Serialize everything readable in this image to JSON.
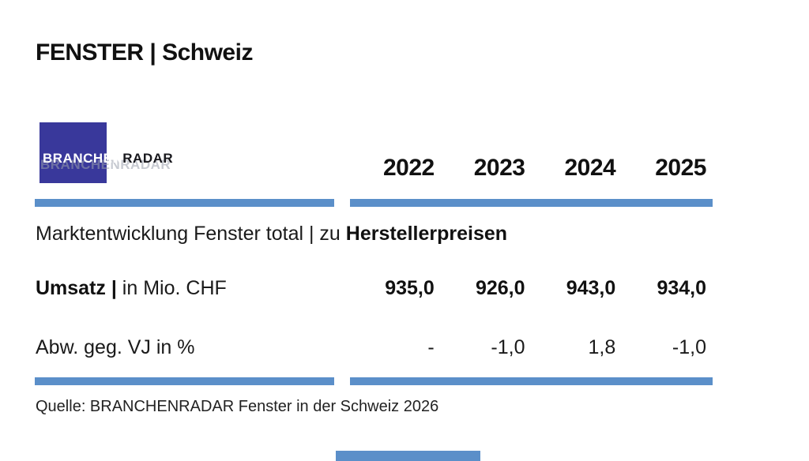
{
  "page": {
    "title": "FENSTER | Schweiz"
  },
  "logo": {
    "text_primary": "BRANCHEN",
    "text_secondary": "RADAR",
    "ghost_text": "BRANCHENRADAR"
  },
  "table": {
    "years": [
      "2022",
      "2023",
      "2024",
      "2025"
    ],
    "section": {
      "prefix": "Marktentwicklung Fenster total | zu ",
      "emphasis": "Herstellerpreisen"
    },
    "rows": [
      {
        "label_bold": "Umsatz |",
        "label_rest": " in Mio. CHF",
        "values": [
          "935,0",
          "926,0",
          "943,0",
          "934,0"
        ]
      },
      {
        "label_bold": "",
        "label_rest": "Abw. geg. VJ in %",
        "values": [
          "-",
          "-1,0",
          "1,8",
          "-1,0"
        ]
      }
    ]
  },
  "footer": {
    "source": "Quelle: BRANCHENRADAR Fenster in der Schweiz 2026"
  },
  "colors": {
    "accent_bar": "#5B8FC9",
    "logo_background": "#39389B"
  },
  "chart_data": {
    "type": "table",
    "title": "Marktentwicklung Fenster total | zu Herstellerpreisen",
    "categories": [
      "2022",
      "2023",
      "2024",
      "2025"
    ],
    "series": [
      {
        "name": "Umsatz in Mio. CHF",
        "values": [
          935.0,
          926.0,
          943.0,
          934.0
        ]
      },
      {
        "name": "Abw. geg. VJ in %",
        "values": [
          null,
          -1.0,
          1.8,
          -1.0
        ]
      }
    ]
  }
}
